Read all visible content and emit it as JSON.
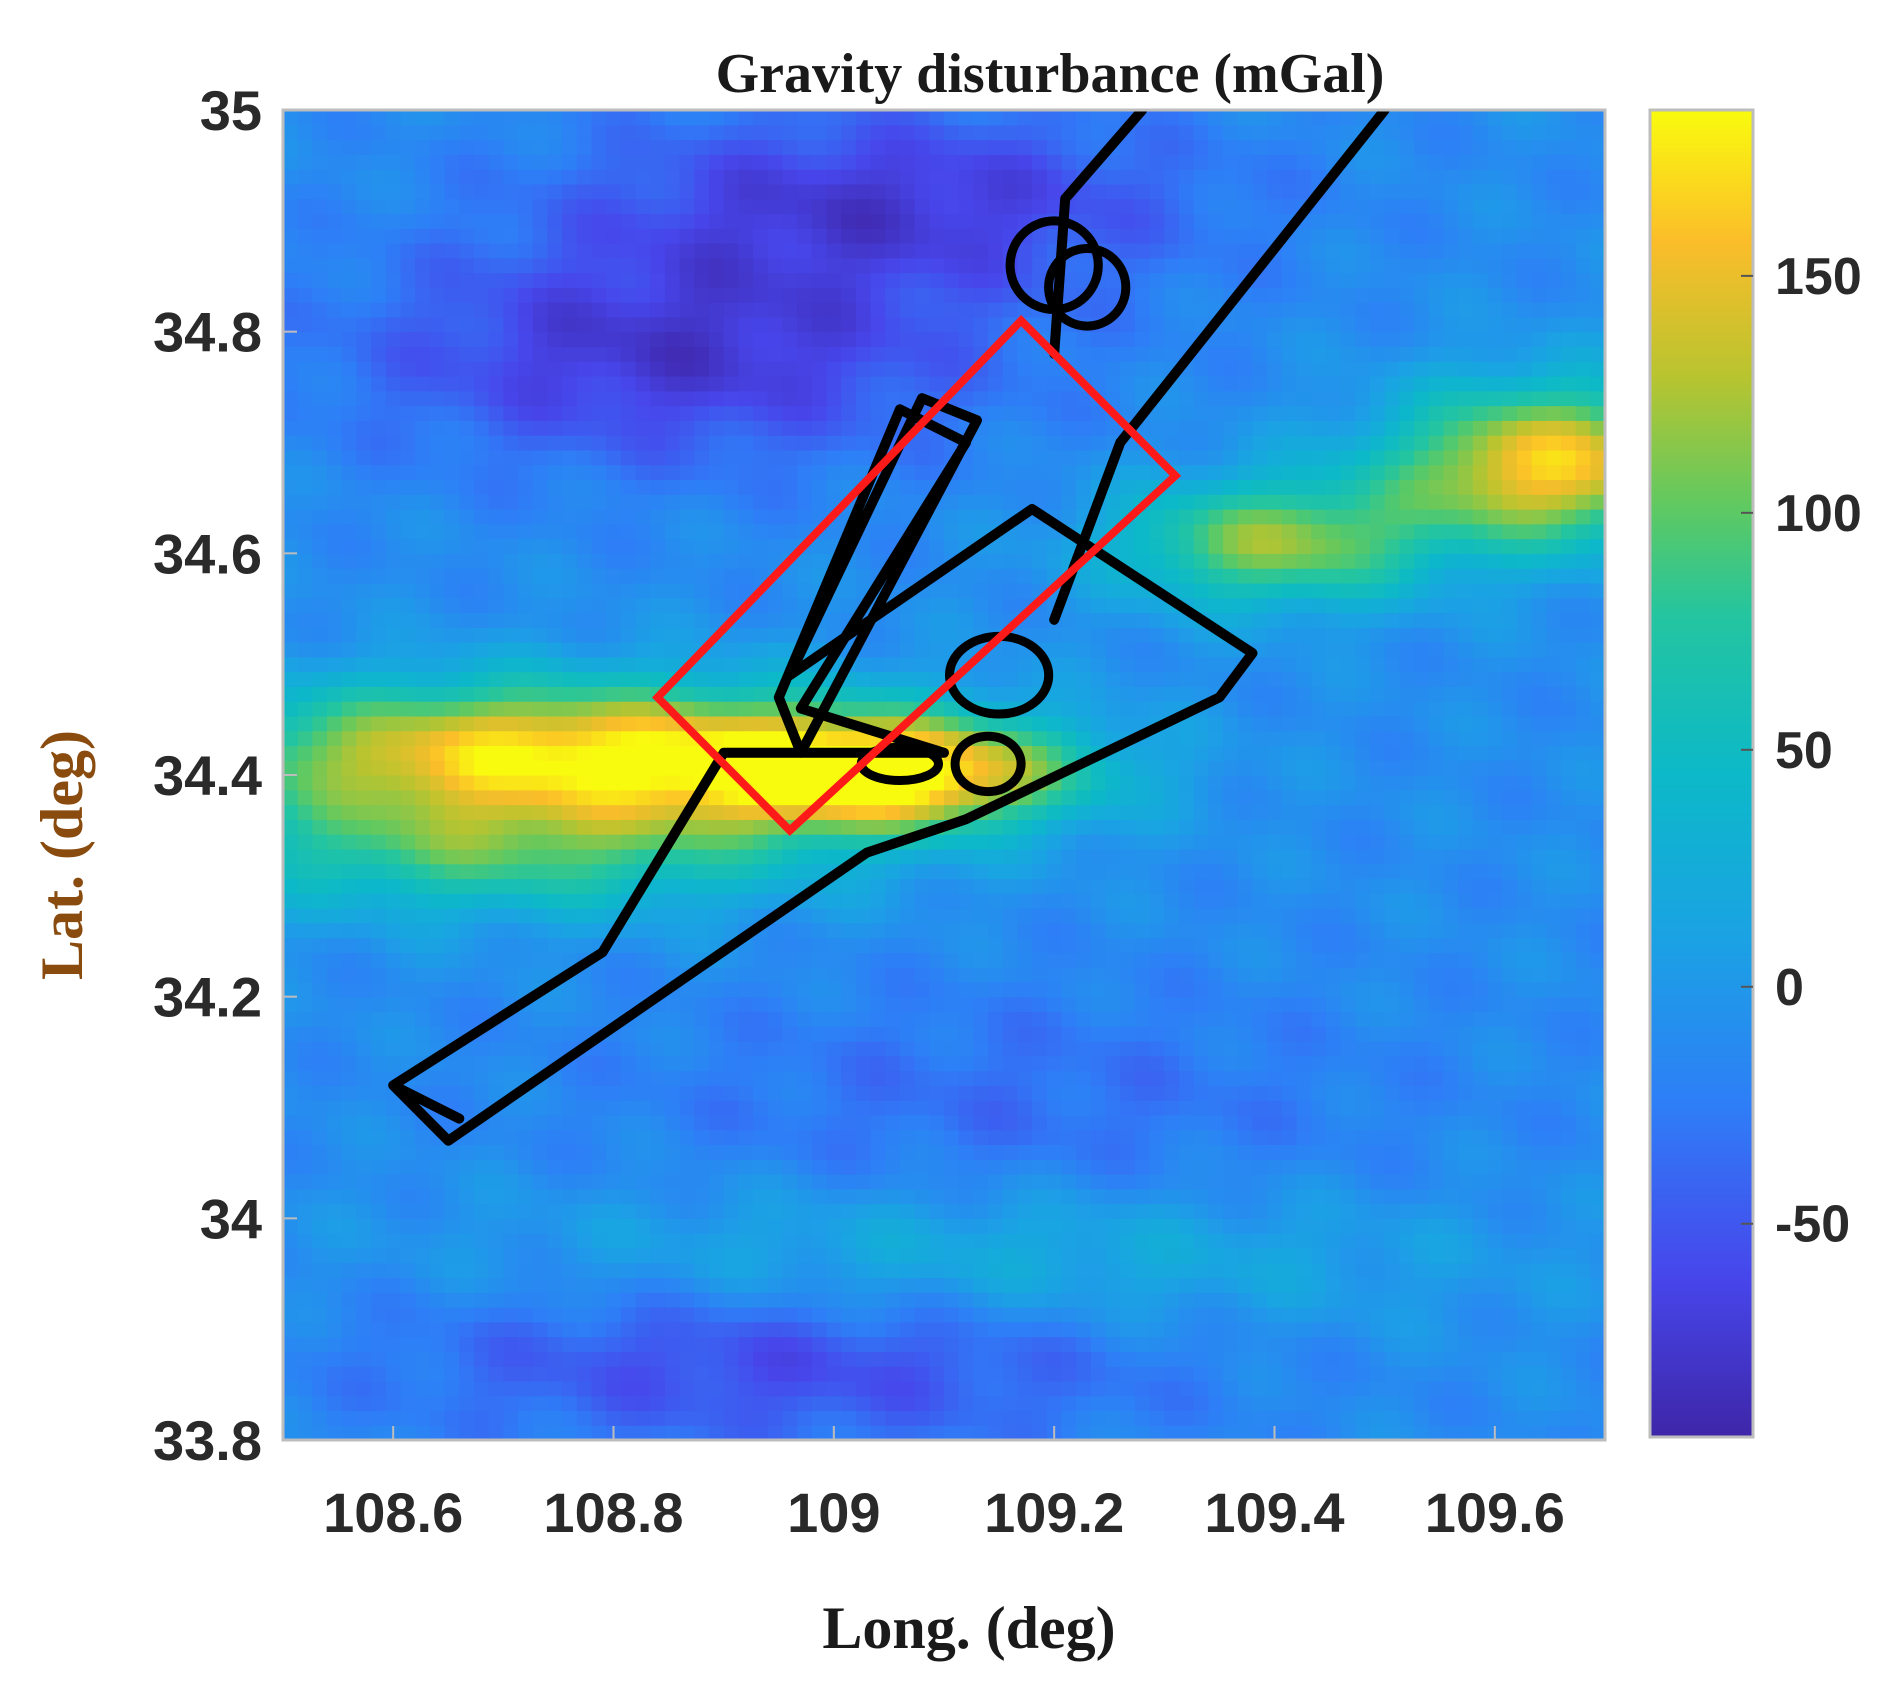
{
  "chart_data": {
    "type": "heatmap",
    "title": "Gravity disturbance (mGal)",
    "xlabel": "Long. (deg)",
    "ylabel": "Lat. (deg)",
    "xlim": [
      108.5,
      109.7
    ],
    "ylim": [
      33.8,
      35.0
    ],
    "xticks": [
      108.6,
      108.8,
      109.0,
      109.2,
      109.4,
      109.6
    ],
    "xtick_labels": [
      "108.6",
      "108.8",
      "109",
      "109.2",
      "109.4",
      "109.6"
    ],
    "yticks": [
      33.8,
      34.0,
      34.2,
      34.4,
      34.6,
      34.8,
      35.0
    ],
    "ytick_labels": [
      "33.8",
      "34",
      "34.2",
      "34.4",
      "34.6",
      "34.8",
      "35"
    ],
    "colorbar": {
      "range": [
        -95,
        185
      ],
      "ticks": [
        -50,
        0,
        50,
        100,
        150
      ],
      "tick_labels": [
        "-50",
        "0",
        "50",
        "100",
        "150"
      ],
      "colormap": "parula"
    },
    "field": {
      "background_value": -10,
      "anomalies": [
        {
          "lon": 108.75,
          "lat": 34.42,
          "value": 175,
          "sx": 0.22,
          "sy": 0.045
        },
        {
          "lon": 109.05,
          "lat": 34.4,
          "value": 160,
          "sx": 0.12,
          "sy": 0.035
        },
        {
          "lon": 108.7,
          "lat": 34.33,
          "value": 80,
          "sx": 0.2,
          "sy": 0.04
        },
        {
          "lon": 109.65,
          "lat": 34.68,
          "value": 165,
          "sx": 0.1,
          "sy": 0.05
        },
        {
          "lon": 109.4,
          "lat": 34.61,
          "value": 115,
          "sx": 0.1,
          "sy": 0.04
        },
        {
          "lon": 109.1,
          "lat": 33.96,
          "value": 40,
          "sx": 0.3,
          "sy": 0.05
        },
        {
          "lon": 108.85,
          "lat": 34.78,
          "value": -75,
          "sx": 0.2,
          "sy": 0.07
        },
        {
          "lon": 109.05,
          "lat": 34.92,
          "value": -70,
          "sx": 0.2,
          "sy": 0.06
        },
        {
          "lon": 108.95,
          "lat": 33.88,
          "value": -65,
          "sx": 0.25,
          "sy": 0.06
        },
        {
          "lon": 109.15,
          "lat": 34.1,
          "value": -35,
          "sx": 0.25,
          "sy": 0.08
        }
      ]
    },
    "track": [
      [
        108.66,
        34.09
      ],
      [
        108.6,
        34.12
      ],
      [
        108.79,
        34.24
      ],
      [
        108.9,
        34.42
      ],
      [
        109.1,
        34.42
      ],
      [
        108.97,
        34.46
      ],
      [
        109.12,
        34.7
      ],
      [
        109.06,
        34.73
      ],
      [
        108.95,
        34.47
      ],
      [
        108.97,
        34.42
      ],
      [
        109.13,
        34.72
      ],
      [
        109.08,
        34.74
      ],
      [
        108.96,
        34.49
      ],
      [
        109.18,
        34.64
      ],
      [
        109.38,
        34.51
      ],
      [
        109.35,
        34.47
      ],
      [
        109.12,
        34.36
      ],
      [
        109.03,
        34.33
      ],
      [
        108.65,
        34.07
      ],
      [
        108.6,
        34.12
      ]
    ],
    "track_north_leg": [
      [
        109.2,
        34.54
      ],
      [
        109.26,
        34.7
      ],
      [
        109.5,
        35.0
      ]
    ],
    "track_north_leg2": [
      [
        109.2,
        34.78
      ],
      [
        109.21,
        34.92
      ],
      [
        109.28,
        35.0
      ]
    ],
    "loops": [
      {
        "lon": 109.2,
        "lat": 34.86,
        "r_lon": 0.04,
        "r_lat": 0.04
      },
      {
        "lon": 109.23,
        "lat": 34.84,
        "r_lon": 0.035,
        "r_lat": 0.035
      },
      {
        "lon": 109.15,
        "lat": 34.49,
        "r_lon": 0.045,
        "r_lat": 0.035
      },
      {
        "lon": 109.14,
        "lat": 34.41,
        "r_lon": 0.03,
        "r_lat": 0.025
      },
      {
        "lon": 109.06,
        "lat": 34.41,
        "r_lon": 0.035,
        "r_lat": 0.015
      }
    ],
    "study_area": [
      [
        108.84,
        34.47
      ],
      [
        109.17,
        34.81
      ],
      [
        109.31,
        34.67
      ],
      [
        108.96,
        34.35
      ]
    ]
  }
}
